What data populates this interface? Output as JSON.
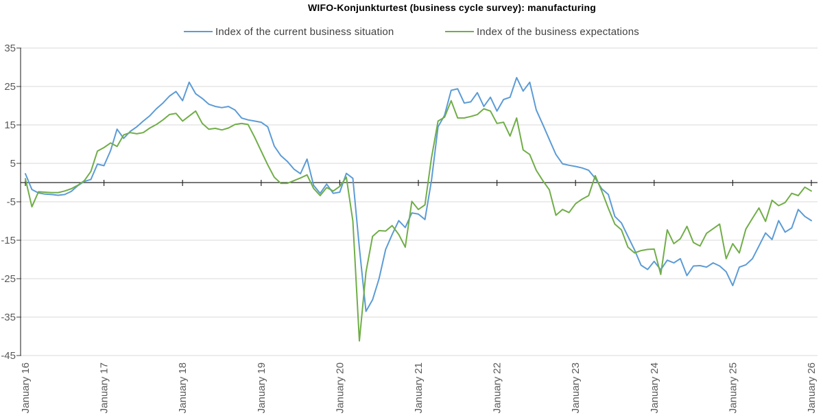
{
  "chart_data": {
    "type": "line",
    "title": "WIFO-Konjunkturtest (business cycle survey): manufacturing",
    "x_frequency": "monthly",
    "x_range": [
      "January 16",
      "January 26"
    ],
    "x_tick_labels": [
      "January 16",
      "January 17",
      "January 18",
      "January 19",
      "January 20",
      "January 21",
      "January 22",
      "January 23",
      "January 24",
      "January 25",
      "January 26"
    ],
    "y_tick_labels": [
      35,
      25,
      15,
      5,
      -5,
      -15,
      -25,
      -35,
      -45
    ],
    "ylim": [
      -45,
      35
    ],
    "grid": true,
    "zero_line": true,
    "legend_position": "top",
    "colors": {
      "grid": "#D9D9D9",
      "axis": "#404040",
      "tick_label": "#595959",
      "title": "#000000",
      "legend_text": "#404040"
    },
    "series": [
      {
        "name": "Index of the current business situation",
        "color": "#5B9BD5",
        "values": [
          2.3,
          -1.8,
          -2.7,
          -3,
          -3.1,
          -3.3,
          -3.1,
          -2.3,
          -0.8,
          0.3,
          0.8,
          4.8,
          4.4,
          8.3,
          13.9,
          11.5,
          13.3,
          14.5,
          16,
          17.4,
          19.2,
          20.7,
          22.5,
          23.7,
          21.3,
          26.1,
          23.1,
          21.9,
          20.4,
          19.8,
          19.5,
          19.8,
          18.9,
          16.8,
          16.3,
          16,
          15.7,
          14.5,
          9.5,
          7,
          5.5,
          3.5,
          2.3,
          6.1,
          -0.7,
          -2.8,
          -0.4,
          -2.8,
          -2.5,
          2.4,
          1.1,
          -17,
          -33.5,
          -30.5,
          -25,
          -17.4,
          -13.5,
          -9.9,
          -11.7,
          -7.9,
          -8.2,
          -9.6,
          0.5,
          14.5,
          17.5,
          24,
          24.4,
          20.7,
          21,
          23.4,
          19.8,
          22.2,
          18.6,
          21.6,
          22.2,
          27.3,
          23.8,
          26.1,
          18.9,
          15.1,
          11.2,
          7.3,
          4.9,
          4.5,
          4.2,
          3.8,
          3.2,
          1.1,
          -1.6,
          -3.1,
          -8.8,
          -10.5,
          -14,
          -17.5,
          -21.5,
          -22.6,
          -20.5,
          -22.7,
          -20.2,
          -20.9,
          -19.8,
          -24.2,
          -21.7,
          -21.6,
          -22,
          -20.9,
          -21.7,
          -23.2,
          -26.8,
          -22,
          -21.4,
          -19.8,
          -16.5,
          -13.1,
          -14.8,
          -9.9,
          -12.9,
          -11.8,
          -7,
          -8.8,
          -9.9
        ]
      },
      {
        "name": "Index of the business expectations",
        "color": "#70AD47",
        "values": [
          1,
          -6.3,
          -2.4,
          -2.5,
          -2.6,
          -2.6,
          -2.2,
          -1.6,
          -0.7,
          0.5,
          2.9,
          8.2,
          9.1,
          10.3,
          9.4,
          12.4,
          13,
          12.7,
          13,
          14.2,
          15.1,
          16.3,
          17.7,
          18,
          16,
          17.3,
          18.6,
          15.4,
          13.9,
          14.1,
          13.7,
          14.2,
          15.1,
          15.4,
          15.1,
          11.8,
          8.2,
          4.6,
          1.4,
          -0.2,
          -0.2,
          0.5,
          1.2,
          2,
          -1.5,
          -3.4,
          -1.3,
          -2.2,
          -1,
          1.4,
          -10,
          -41.2,
          -23.3,
          -14,
          -12.5,
          -12.6,
          -11.2,
          -13.5,
          -16.8,
          -4.9,
          -7,
          -5.8,
          6.4,
          16,
          17,
          21.3,
          16.8,
          16.8,
          17.2,
          17.7,
          19.2,
          18.6,
          15.4,
          15.7,
          12.1,
          16.8,
          8.5,
          7.3,
          3.2,
          0.5,
          -1.9,
          -8.5,
          -7,
          -7.8,
          -5.5,
          -4.3,
          -3.4,
          1.8,
          -2.2,
          -6.7,
          -10.8,
          -12.3,
          -16.8,
          -18.3,
          -17.7,
          -17.4,
          -17.3,
          -23.9,
          -12.3,
          -15.9,
          -14.6,
          -11.4,
          -15.6,
          -16.5,
          -13.2,
          -12,
          -10.8,
          -19.8,
          -15.9,
          -18.3,
          -12.1,
          -9.3,
          -6.6,
          -10.1,
          -4.6,
          -6,
          -5.2,
          -2.8,
          -3.4,
          -1.2,
          -2.2
        ]
      }
    ]
  }
}
